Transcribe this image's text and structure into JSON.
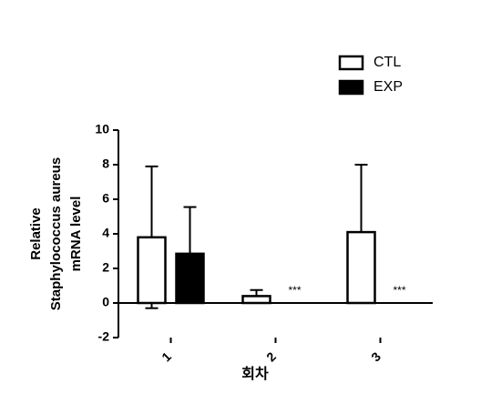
{
  "chart_data": {
    "type": "bar",
    "y_label": [
      "Relative",
      "Staphylococcus aureus",
      "mRNA level"
    ],
    "x_label": "회차",
    "categories": [
      "1",
      "2",
      "3"
    ],
    "series": [
      {
        "name": "CTL",
        "color": "#ffffff",
        "values": [
          3.8,
          0.4,
          4.1
        ],
        "errors": [
          4.1,
          0.35,
          3.9
        ]
      },
      {
        "name": "EXP",
        "color": "#000000",
        "values": [
          2.85,
          0,
          0
        ],
        "errors": [
          2.7,
          0,
          0
        ]
      }
    ],
    "annotations": [
      {
        "category": "2",
        "text": "***"
      },
      {
        "category": "3",
        "text": "***"
      }
    ],
    "ylim": [
      -2,
      10
    ],
    "yticks": [
      -2,
      0,
      2,
      4,
      6,
      8,
      10
    ],
    "grid": false
  }
}
